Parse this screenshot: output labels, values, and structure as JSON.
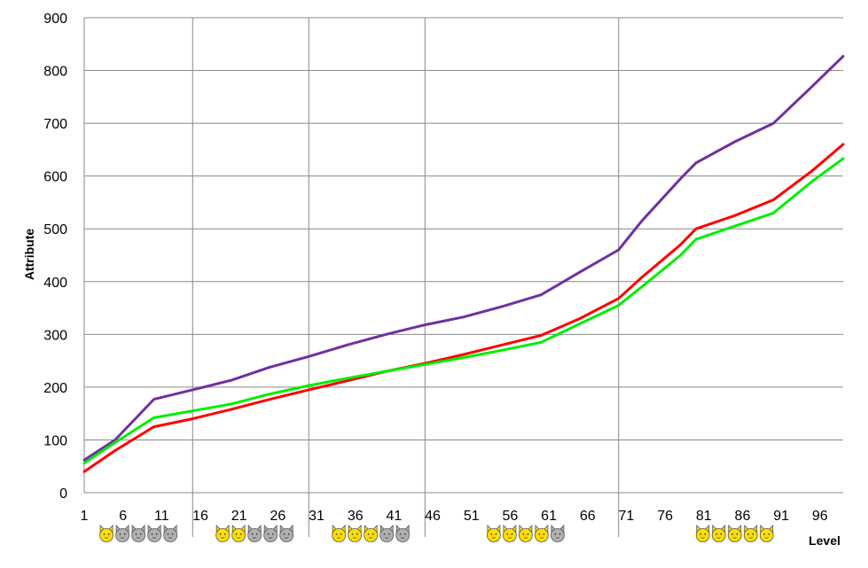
{
  "chart_data": {
    "type": "line",
    "xlabel": "Level",
    "ylabel": "Attribute",
    "xlim": [
      1,
      99
    ],
    "ylim": [
      0,
      900
    ],
    "y_ticks": [
      0,
      100,
      200,
      300,
      400,
      500,
      600,
      700,
      800,
      900
    ],
    "x_ticks": [
      1,
      6,
      11,
      16,
      21,
      26,
      31,
      36,
      41,
      46,
      51,
      56,
      61,
      66,
      71,
      76,
      81,
      86,
      91,
      96
    ],
    "grid": {
      "horizontal": true,
      "vertical_at": [
        15,
        30,
        45,
        70
      ]
    },
    "series": [
      {
        "color": "#7030a0",
        "points": [
          [
            1,
            62
          ],
          [
            5,
            100
          ],
          [
            10,
            177
          ],
          [
            15,
            195
          ],
          [
            20,
            213
          ],
          [
            25,
            238
          ],
          [
            30,
            258
          ],
          [
            35,
            280
          ],
          [
            40,
            300
          ],
          [
            45,
            318
          ],
          [
            50,
            333
          ],
          [
            55,
            353
          ],
          [
            60,
            375
          ],
          [
            65,
            418
          ],
          [
            70,
            460
          ],
          [
            73,
            515
          ],
          [
            78,
            595
          ],
          [
            80,
            625
          ],
          [
            85,
            665
          ],
          [
            90,
            700
          ],
          [
            95,
            770
          ],
          [
            99,
            827
          ]
        ]
      },
      {
        "color": "#ff0000",
        "points": [
          [
            1,
            40
          ],
          [
            5,
            80
          ],
          [
            10,
            125
          ],
          [
            15,
            140
          ],
          [
            20,
            158
          ],
          [
            25,
            177
          ],
          [
            30,
            195
          ],
          [
            35,
            212
          ],
          [
            40,
            230
          ],
          [
            45,
            245
          ],
          [
            50,
            262
          ],
          [
            55,
            280
          ],
          [
            60,
            298
          ],
          [
            65,
            330
          ],
          [
            70,
            368
          ],
          [
            73,
            408
          ],
          [
            78,
            470
          ],
          [
            80,
            500
          ],
          [
            85,
            525
          ],
          [
            90,
            555
          ],
          [
            95,
            610
          ],
          [
            99,
            660
          ]
        ]
      },
      {
        "color": "#00ee00",
        "points": [
          [
            1,
            56
          ],
          [
            5,
            95
          ],
          [
            10,
            142
          ],
          [
            15,
            155
          ],
          [
            20,
            168
          ],
          [
            25,
            187
          ],
          [
            30,
            203
          ],
          [
            35,
            217
          ],
          [
            40,
            230
          ],
          [
            45,
            243
          ],
          [
            50,
            256
          ],
          [
            55,
            270
          ],
          [
            60,
            285
          ],
          [
            65,
            320
          ],
          [
            70,
            355
          ],
          [
            73,
            390
          ],
          [
            78,
            450
          ],
          [
            80,
            480
          ],
          [
            85,
            505
          ],
          [
            90,
            530
          ],
          [
            95,
            590
          ],
          [
            99,
            633
          ]
        ]
      }
    ],
    "markers": [
      {
        "x_center": 8,
        "icons": [
          "gold",
          "gray",
          "gray",
          "gray",
          "gray"
        ]
      },
      {
        "x_center": 23,
        "icons": [
          "gold",
          "gold",
          "gray",
          "gray",
          "gray"
        ]
      },
      {
        "x_center": 38,
        "icons": [
          "gold",
          "gold",
          "gold",
          "gray",
          "gray"
        ]
      },
      {
        "x_center": 58,
        "icons": [
          "gold",
          "gold",
          "gold",
          "gold",
          "gray"
        ]
      },
      {
        "x_center": 85,
        "icons": [
          "gold",
          "gold",
          "gold",
          "gold",
          "gold"
        ]
      }
    ],
    "colors": {
      "gold": "#ffdd00",
      "gray": "#b0b0b0",
      "grid": "#888888"
    }
  }
}
